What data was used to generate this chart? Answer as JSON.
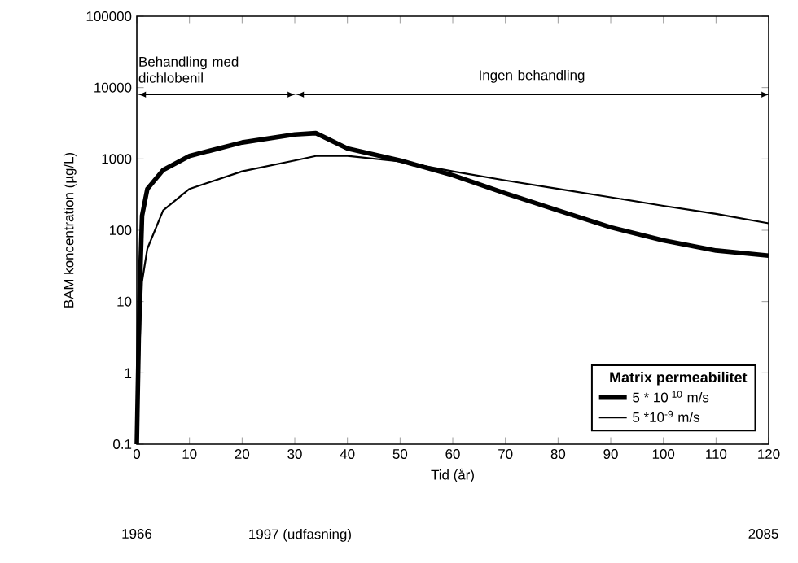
{
  "chart_data": {
    "type": "line",
    "xlabel": "Tid (år)",
    "ylabel": "BAM koncentration (µg/L)",
    "log": "y",
    "xlim": [
      0,
      120
    ],
    "xticks": [
      0,
      10,
      20,
      30,
      40,
      50,
      60,
      70,
      80,
      90,
      100,
      110,
      120
    ],
    "ylim": [
      0.1,
      100000
    ],
    "yticks": [
      0.1,
      1,
      10,
      100,
      1000,
      10000,
      100000
    ],
    "grid": false,
    "legend": "bottom right",
    "legend_title": "Matrix permeabilitet",
    "line_style": "solid",
    "marker": "none",
    "x": [
      0,
      0.5,
      1,
      2,
      5,
      10,
      20,
      30,
      34,
      40,
      50,
      60,
      70,
      80,
      90,
      100,
      110,
      120
    ],
    "series": [
      {
        "name": "5 * 10$^{-10}$ m/s",
        "color": "#000000",
        "values": [
          0.1,
          10,
          160,
          380,
          700,
          1100,
          1700,
          2200,
          2300,
          1400,
          950,
          590,
          330,
          190,
          110,
          72,
          52,
          44
        ]
      },
      {
        "name": "5 *10$^{-9}$ m/s",
        "color": "#000000",
        "values": [
          0.1,
          2,
          19,
          55,
          190,
          380,
          670,
          950,
          1100,
          1100,
          920,
          670,
          500,
          380,
          290,
          220,
          170,
          125
        ]
      }
    ],
    "x2lim": [
      1966,
      2086
    ],
    "x2ticks": [
      1966,
      {
        "value": 1997,
        "label": "1997 (udfasning)"
      },
      2085
    ],
    "annotations": [
      "Behandling med dichlobenil",
      "Ingen behandling"
    ]
  }
}
